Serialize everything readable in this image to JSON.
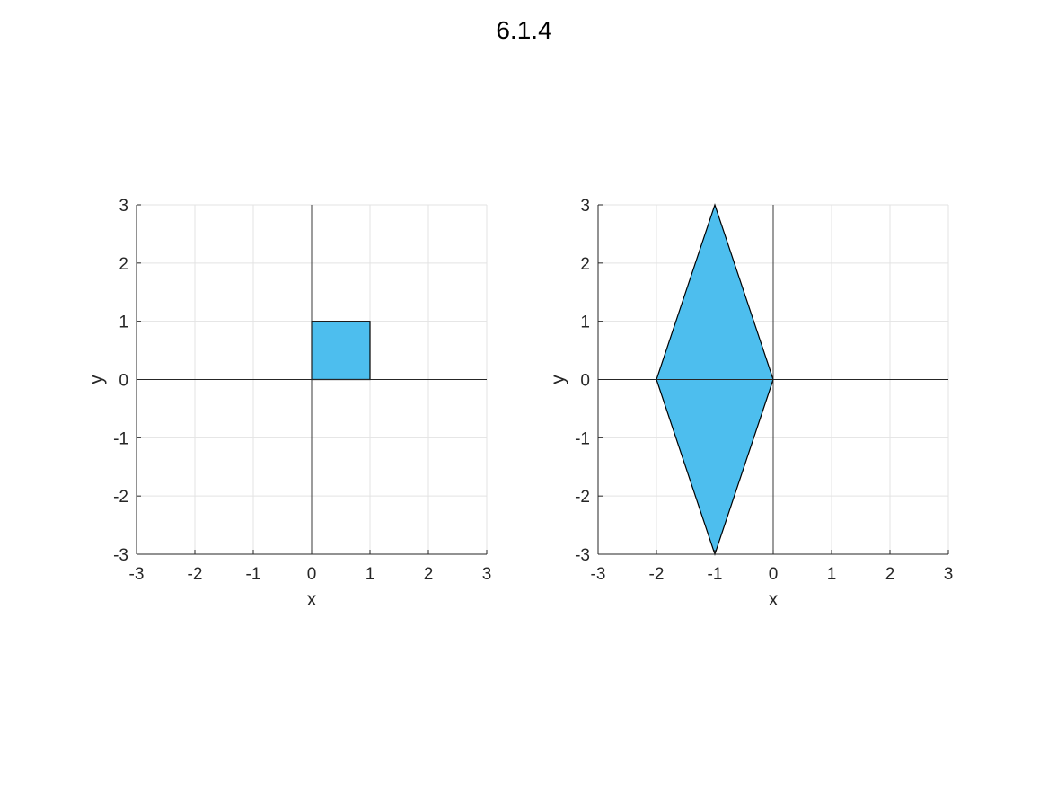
{
  "figure": {
    "title": "6.1.4",
    "fill_color": "#4DBEEE",
    "edge_color": "#000000",
    "grid_color": "#e3e3e3",
    "axis_line_color": "#262626"
  },
  "chart_data": [
    {
      "type": "area",
      "title": "",
      "xlabel": "x",
      "ylabel": "y",
      "xlim": [
        -3,
        3
      ],
      "ylim": [
        -3,
        3
      ],
      "xticks": [
        "-3",
        "-2",
        "-1",
        "0",
        "1",
        "2",
        "3"
      ],
      "yticks": [
        "-3",
        "-2",
        "-1",
        "0",
        "1",
        "2",
        "3"
      ],
      "grid": true,
      "polygon": [
        [
          0,
          0
        ],
        [
          1,
          0
        ],
        [
          1,
          1
        ],
        [
          0,
          1
        ]
      ]
    },
    {
      "type": "area",
      "title": "",
      "xlabel": "x",
      "ylabel": "y",
      "xlim": [
        -3,
        3
      ],
      "ylim": [
        -3,
        3
      ],
      "xticks": [
        "-3",
        "-2",
        "-1",
        "0",
        "1",
        "2",
        "3"
      ],
      "yticks": [
        "-3",
        "-2",
        "-1",
        "0",
        "1",
        "2",
        "3"
      ],
      "grid": true,
      "polygon": [
        [
          0,
          0
        ],
        [
          -1,
          -3
        ],
        [
          -2,
          0
        ],
        [
          -1,
          3
        ]
      ]
    }
  ]
}
